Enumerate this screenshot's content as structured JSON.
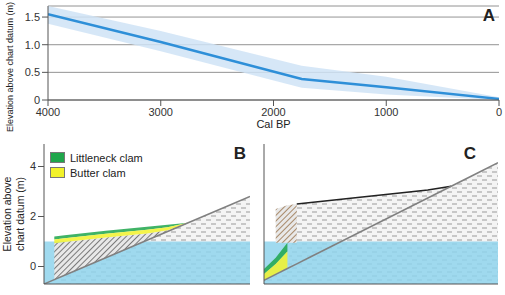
{
  "chart_data": [
    {
      "type": "line",
      "title": "A",
      "x_label": "Cal BP",
      "y_label": "Elevation above chart datum (m)",
      "x": [
        4000,
        3000,
        1750,
        1000,
        0
      ],
      "series": [
        {
          "type": "area",
          "color": "#cfe3f6",
          "values": [
            [
              1.38,
              1.7
            ],
            [
              0.88,
              1.25
            ],
            [
              0.22,
              0.62
            ],
            [
              0.1,
              0.42
            ],
            [
              0,
              0.05
            ]
          ]
        },
        {
          "type": "line",
          "color": "#2e8fd8",
          "values": [
            1.55,
            1.05,
            0.38,
            0.23,
            0.02
          ]
        }
      ],
      "xlim": [
        4000,
        0
      ],
      "xticks": [
        4000,
        3000,
        2000,
        1000,
        0
      ],
      "ylim": [
        0,
        1.7
      ],
      "yticks": [
        0,
        0.5,
        {
          "value": 1,
          "label": "1.0"
        },
        1.5
      ],
      "grid": true
    },
    {
      "type": "area",
      "title": "B",
      "y_label": "Elevation above chart datum (m)",
      "x": [
        0,
        0.5,
        1,
        2,
        3,
        4,
        5,
        6,
        7,
        8,
        9,
        10
      ],
      "series": [
        {
          "type": "area",
          "color": "#9a9a9a",
          "line_style": "dashed",
          "values": [
            [
              -0.7,
              -0.7
            ],
            [
              -0.7,
              -0.525
            ],
            [
              -0.7,
              -0.35
            ],
            [
              -0.7,
              0
            ],
            [
              -0.7,
              0.35
            ],
            [
              -0.7,
              0.7
            ],
            [
              -0.7,
              1.05
            ],
            [
              -0.7,
              1.4
            ],
            [
              -0.7,
              1.75
            ],
            [
              -0.7,
              2.1
            ],
            [
              -0.7,
              2.45
            ],
            [
              -0.7,
              2.8
            ]
          ]
        },
        {
          "type": "area",
          "color": "#8fd3ec",
          "values": [
            [
              -0.7,
              1
            ],
            [
              -0.7,
              1
            ],
            [
              -0.7,
              1
            ],
            [
              -0.7,
              1
            ],
            [
              -0.7,
              1
            ],
            [
              -0.7,
              1
            ],
            [
              -0.7,
              1
            ],
            [
              -0.7,
              1
            ],
            [
              -0.7,
              1
            ],
            [
              -0.7,
              1
            ],
            [
              -0.7,
              1
            ],
            [
              -0.7,
              1
            ]
          ]
        },
        {
          "type": "area",
          "color": "#7a7a7a",
          "line_style": "hatched",
          "values": [
            null,
            [
              -0.525,
              0.93
            ],
            [
              -0.35,
              0.98
            ],
            [
              0,
              1.07
            ],
            [
              0.35,
              1.16
            ],
            [
              0.7,
              1.24
            ],
            [
              1.05,
              1.32
            ],
            [
              1.4,
              1.45
            ],
            [
              1.75,
              1.75
            ],
            null,
            null,
            null
          ]
        },
        {
          "type": "area",
          "name": "Littleneck clam",
          "color": "#1fa64b",
          "values": [
            null,
            [
              1.08,
              1.2
            ],
            [
              1.13,
              1.25
            ],
            [
              1.22,
              1.34
            ],
            [
              1.31,
              1.43
            ],
            [
              1.39,
              1.51
            ],
            [
              1.47,
              1.59
            ],
            [
              1.57,
              1.67
            ],
            [
              1.75,
              1.75
            ],
            null,
            null,
            null
          ]
        },
        {
          "type": "area",
          "name": "Butter clam",
          "color": "#f2f22a",
          "values": [
            null,
            [
              0.93,
              1.08
            ],
            [
              0.98,
              1.13
            ],
            [
              1.07,
              1.22
            ],
            [
              1.16,
              1.31
            ],
            [
              1.24,
              1.39
            ],
            [
              1.32,
              1.47
            ],
            [
              1.45,
              1.57
            ],
            [
              1.75,
              1.75
            ],
            null,
            null,
            null
          ]
        },
        {
          "type": "line",
          "color": "#808080",
          "values": [
            -0.7,
            -0.525,
            -0.35,
            0,
            0.35,
            0.7,
            1.05,
            1.4,
            1.75,
            2.1,
            2.45,
            2.8
          ]
        }
      ],
      "xlim": [
        0,
        10
      ],
      "ylim": [
        -0.7,
        4.9
      ],
      "yticks": [
        0,
        2,
        4
      ],
      "tick_labels": "y",
      "legend": "upper left"
    },
    {
      "type": "area",
      "title": "C",
      "x": [
        0,
        0.5,
        1,
        1.4,
        2,
        3,
        4,
        5,
        6,
        7,
        8,
        9,
        10
      ],
      "series": [
        {
          "type": "area",
          "color": "#9a9a9a",
          "line_style": "dashed",
          "values": [
            [
              -0.7,
              -0.55
            ],
            [
              -0.7,
              -0.315
            ],
            [
              -0.7,
              -0.08
            ],
            [
              -0.7,
              2.5
            ],
            [
              -0.7,
              2.56
            ],
            [
              -0.7,
              2.66
            ],
            [
              -0.7,
              2.76
            ],
            [
              -0.7,
              2.86
            ],
            [
              -0.7,
              2.96
            ],
            [
              -0.7,
              3.06
            ],
            [
              -0.7,
              3.21
            ],
            [
              -0.7,
              3.68
            ],
            [
              -0.7,
              4.15
            ]
          ]
        },
        {
          "type": "area",
          "color": "#8fd3ec",
          "values": [
            [
              -0.7,
              1
            ],
            [
              -0.7,
              1
            ],
            [
              -0.7,
              1
            ],
            [
              -0.7,
              1
            ],
            [
              -0.7,
              1
            ],
            [
              -0.7,
              1
            ],
            [
              -0.7,
              1
            ],
            [
              -0.7,
              1
            ],
            [
              -0.7,
              1
            ],
            [
              -0.7,
              1
            ],
            [
              -0.7,
              1
            ],
            [
              -0.7,
              1
            ],
            [
              -0.7,
              1
            ]
          ]
        },
        {
          "type": "area",
          "color": "#a88a6a",
          "line_style": "hatched",
          "values": [
            null,
            [
              0.95,
              2.3
            ],
            [
              0.95,
              2.45
            ],
            [
              0.95,
              2.5
            ],
            null,
            null,
            null,
            null,
            null,
            null,
            null,
            null,
            null
          ]
        },
        {
          "type": "area",
          "color": "#1fa64b",
          "values": [
            [
              -0.3,
              -0.1
            ],
            [
              0.1,
              0.35
            ],
            [
              0.6,
              0.95
            ],
            null,
            null,
            null,
            null,
            null,
            null,
            null,
            null,
            null,
            null
          ]
        },
        {
          "type": "area",
          "color": "#f2f22a",
          "values": [
            [
              -0.55,
              -0.3
            ],
            [
              -0.3,
              0.1
            ],
            [
              -0.05,
              0.6
            ],
            null,
            null,
            null,
            null,
            null,
            null,
            null,
            null,
            null,
            null
          ]
        },
        {
          "type": "line",
          "color": "#222222",
          "values": [
            null,
            null,
            null,
            2.5,
            2.56,
            2.66,
            2.76,
            2.86,
            2.96,
            3.06,
            3.21,
            null,
            null
          ]
        },
        {
          "type": "line",
          "color": "#808080",
          "values": [
            -0.55,
            -0.315,
            -0.08,
            0.108,
            0.39,
            0.86,
            1.33,
            1.8,
            2.27,
            2.74,
            3.21,
            3.68,
            4.15
          ]
        }
      ],
      "xlim": [
        0,
        10
      ],
      "ylim": [
        -0.7,
        4.9
      ],
      "tick_labels": false
    }
  ]
}
